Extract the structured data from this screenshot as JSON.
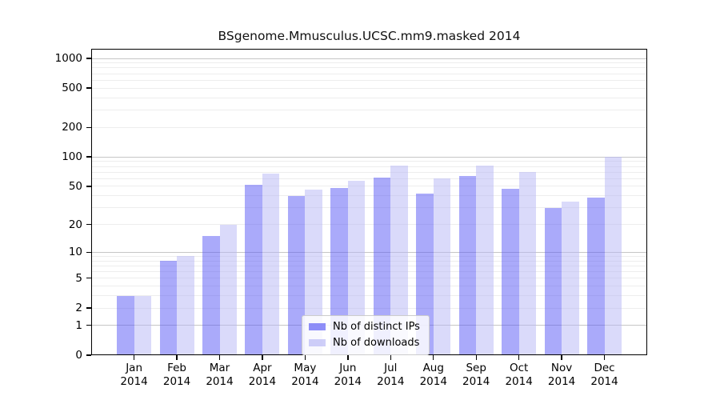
{
  "title": "BSgenome.Mmusculus.UCSC.mm9.masked 2014",
  "chart_data": {
    "type": "bar",
    "title": "BSgenome.Mmusculus.UCSC.mm9.masked 2014",
    "categories": [
      "Jan",
      "Feb",
      "Mar",
      "Apr",
      "May",
      "Jun",
      "Jul",
      "Aug",
      "Sep",
      "Oct",
      "Nov",
      "Dec"
    ],
    "category_year": "2014",
    "series": [
      {
        "name": "Nb of distinct IPs",
        "color": "#5555f5",
        "alpha": 0.5,
        "values": [
          3,
          8,
          15,
          52,
          40,
          48,
          62,
          42,
          64,
          47,
          30,
          38
        ]
      },
      {
        "name": "Nb of downloads",
        "color": "#b5b5f5",
        "alpha": 0.5,
        "values": [
          3,
          9,
          20,
          68,
          46,
          57,
          81,
          60,
          81,
          70,
          35,
          100
        ]
      }
    ],
    "y_ticks": [
      0,
      1,
      2,
      5,
      10,
      20,
      50,
      100,
      200,
      500,
      1000
    ],
    "y_scale": "log10(1+v)",
    "y_range": [
      0,
      1000
    ],
    "grid": {
      "orientation": "horizontal",
      "major_values": [
        1,
        10,
        100,
        1000
      ],
      "minor_values": [
        2,
        3,
        4,
        5,
        6,
        7,
        8,
        9,
        20,
        30,
        40,
        50,
        60,
        70,
        80,
        90,
        200,
        300,
        400,
        500,
        600,
        700,
        800,
        900
      ],
      "major_color": "#c6c6c6",
      "minor_color": "#ededed"
    },
    "axis_color": "#000000",
    "legend_position": "inside lower-center"
  },
  "legend": {
    "entries": [
      "Nb of distinct IPs",
      "Nb of downloads"
    ]
  }
}
